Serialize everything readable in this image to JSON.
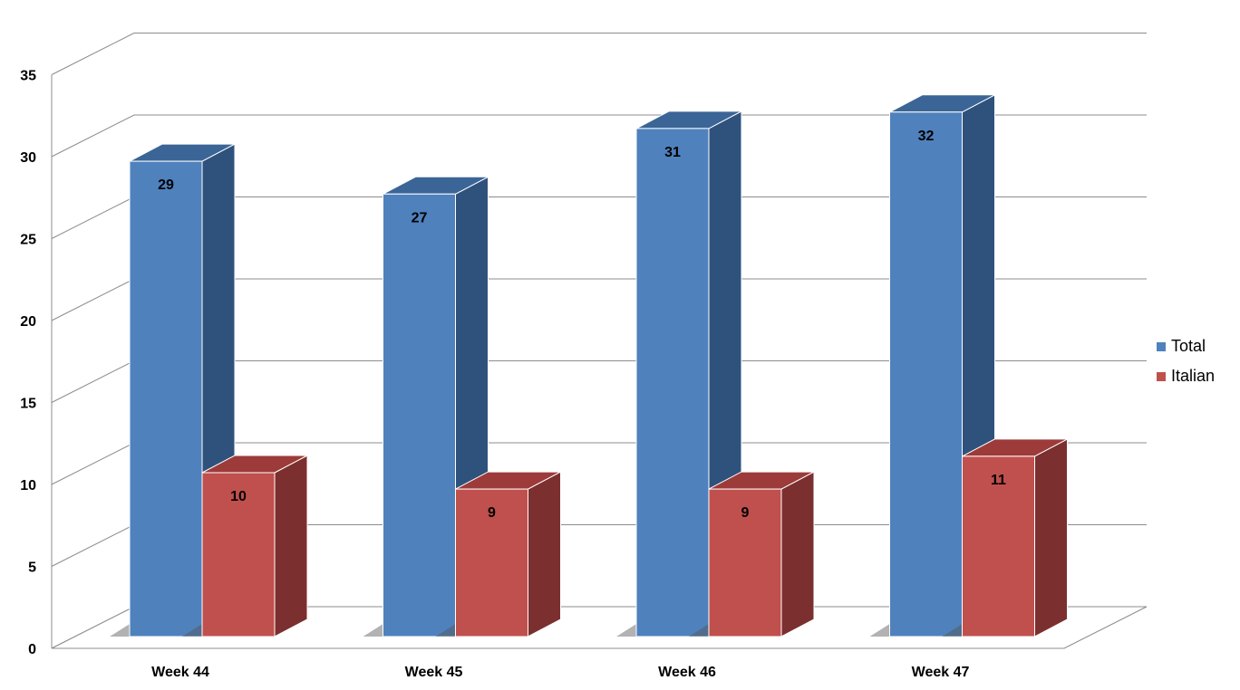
{
  "chart_data": {
    "type": "bar",
    "categories": [
      "Week 44",
      "Week 45",
      "Week 46",
      "Week 47"
    ],
    "series": [
      {
        "name": "Total",
        "values": [
          29,
          27,
          31,
          32
        ],
        "color": "#4F81BD",
        "side_color": "#2F527C",
        "top_color": "#3B6596"
      },
      {
        "name": "Italian",
        "values": [
          10,
          9,
          9,
          11
        ],
        "color": "#C0504D",
        "side_color": "#7B2F2E",
        "top_color": "#9C3B39"
      }
    ],
    "y_ticks": [
      "0",
      "5",
      "10",
      "15",
      "20",
      "25",
      "30",
      "35"
    ],
    "ylim": [
      0,
      35
    ],
    "grid": true,
    "legend_position": "right",
    "title": "",
    "xlabel": "",
    "ylabel": ""
  },
  "legend": {
    "items": [
      {
        "label": "Total",
        "color": "#4F81BD"
      },
      {
        "label": "Italian",
        "color": "#C0504D"
      }
    ]
  }
}
